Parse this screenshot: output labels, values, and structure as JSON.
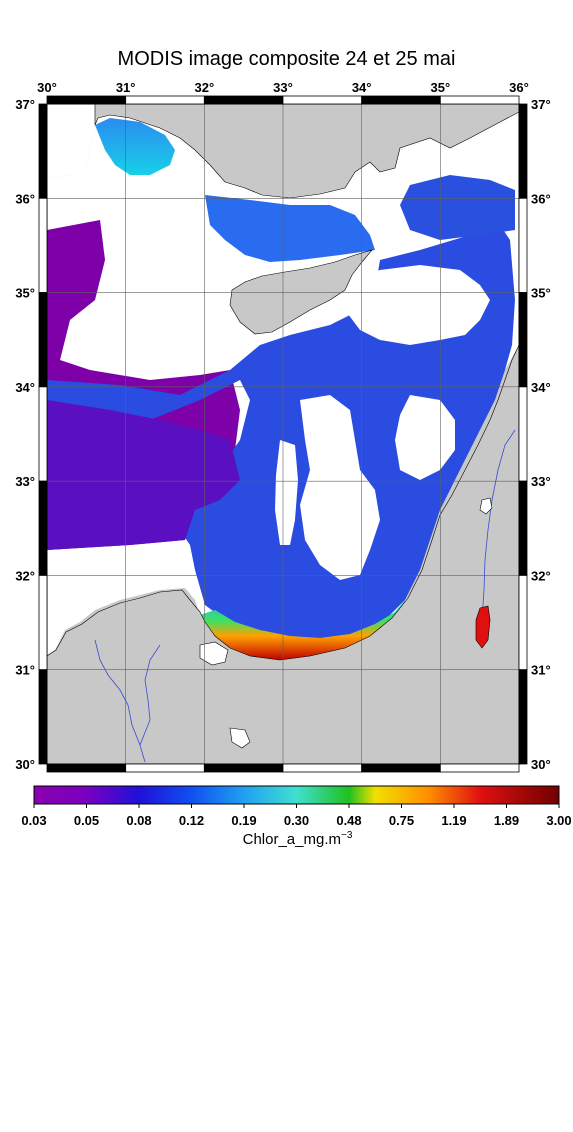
{
  "title": "MODIS image composite 24 et 25 mai",
  "lon_ticks": [
    "30",
    "31",
    "32",
    "33",
    "34",
    "35",
    "36"
  ],
  "lat_ticks": [
    "37",
    "36",
    "35",
    "34",
    "33",
    "32",
    "31",
    "30"
  ],
  "tick_mark": "°",
  "colorbar": {
    "ticks": [
      "0.03",
      "0.05",
      "0.08",
      "0.12",
      "0.19",
      "0.30",
      "0.48",
      "0.75",
      "1.19",
      "1.89",
      "3.00"
    ],
    "label_text": "Chlor_a_mg.m",
    "label_exp": "−3",
    "colors": [
      "#7a00a8",
      "#4a10c0",
      "#1020d8",
      "#1a60ee",
      "#22b0f0",
      "#40e0d0",
      "#30c030",
      "#f0e000",
      "#ff8800",
      "#e01010",
      "#800000"
    ]
  },
  "colors": {
    "land": "#c8c8c8",
    "no_data": "#ffffff",
    "frame": "#000000",
    "grid": "#606060",
    "river": "#3a4ad0"
  }
}
